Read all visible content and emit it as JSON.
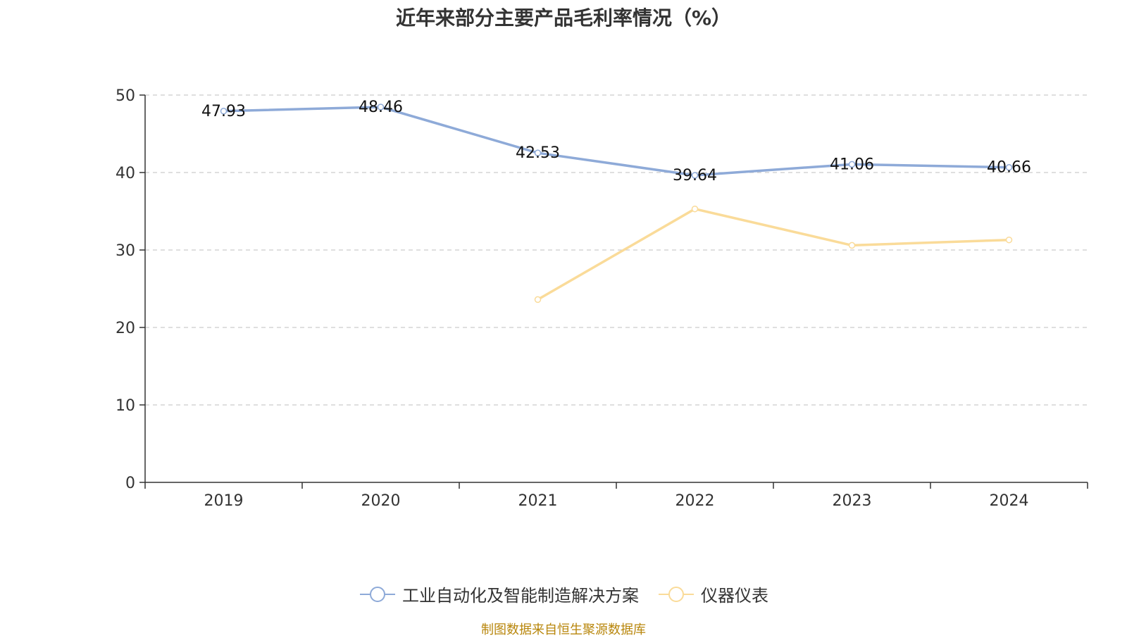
{
  "chart_data": {
    "type": "line",
    "title": "近年来部分主要产品毛利率情况（%）",
    "categories": [
      "2019",
      "2020",
      "2021",
      "2022",
      "2023",
      "2024"
    ],
    "ylim": [
      0,
      50
    ],
    "yticks": [
      0,
      10,
      20,
      30,
      40,
      50
    ],
    "grid": true,
    "legend_position": "bottom",
    "series": [
      {
        "name": "工业自动化及智能制造解决方案",
        "color": "#8eaad8",
        "values": [
          47.93,
          48.46,
          42.53,
          39.64,
          41.06,
          40.66
        ],
        "labels": [
          "47.93",
          "48.46",
          "42.53",
          "39.64",
          "41.06",
          "40.66"
        ]
      },
      {
        "name": "仪器仪表",
        "color": "#fadb99",
        "values": [
          null,
          null,
          23.6,
          35.3,
          30.6,
          31.3
        ],
        "labels": []
      }
    ]
  },
  "footer": {
    "source": "制图数据来自恒生聚源数据库"
  }
}
